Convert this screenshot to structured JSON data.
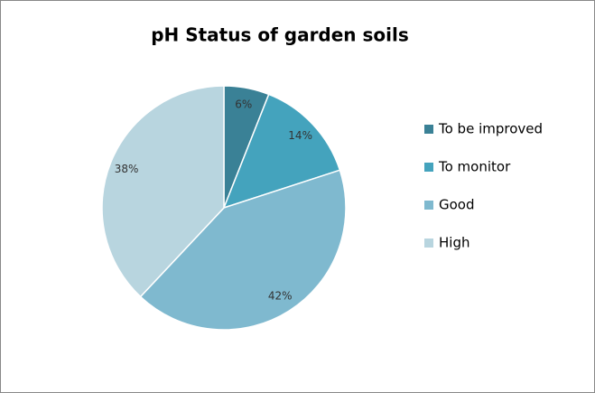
{
  "chart_data": {
    "type": "pie",
    "title": "pH Status of garden soils",
    "categories": [
      "To be improved",
      "To monitor",
      "Good",
      "High"
    ],
    "values": [
      6,
      14,
      42,
      38
    ],
    "value_labels": [
      "6%",
      "14%",
      "42%",
      "38%"
    ],
    "colors": [
      "#3a8196",
      "#44a3bd",
      "#7fb9cf",
      "#b8d5df"
    ],
    "legend": "right"
  }
}
